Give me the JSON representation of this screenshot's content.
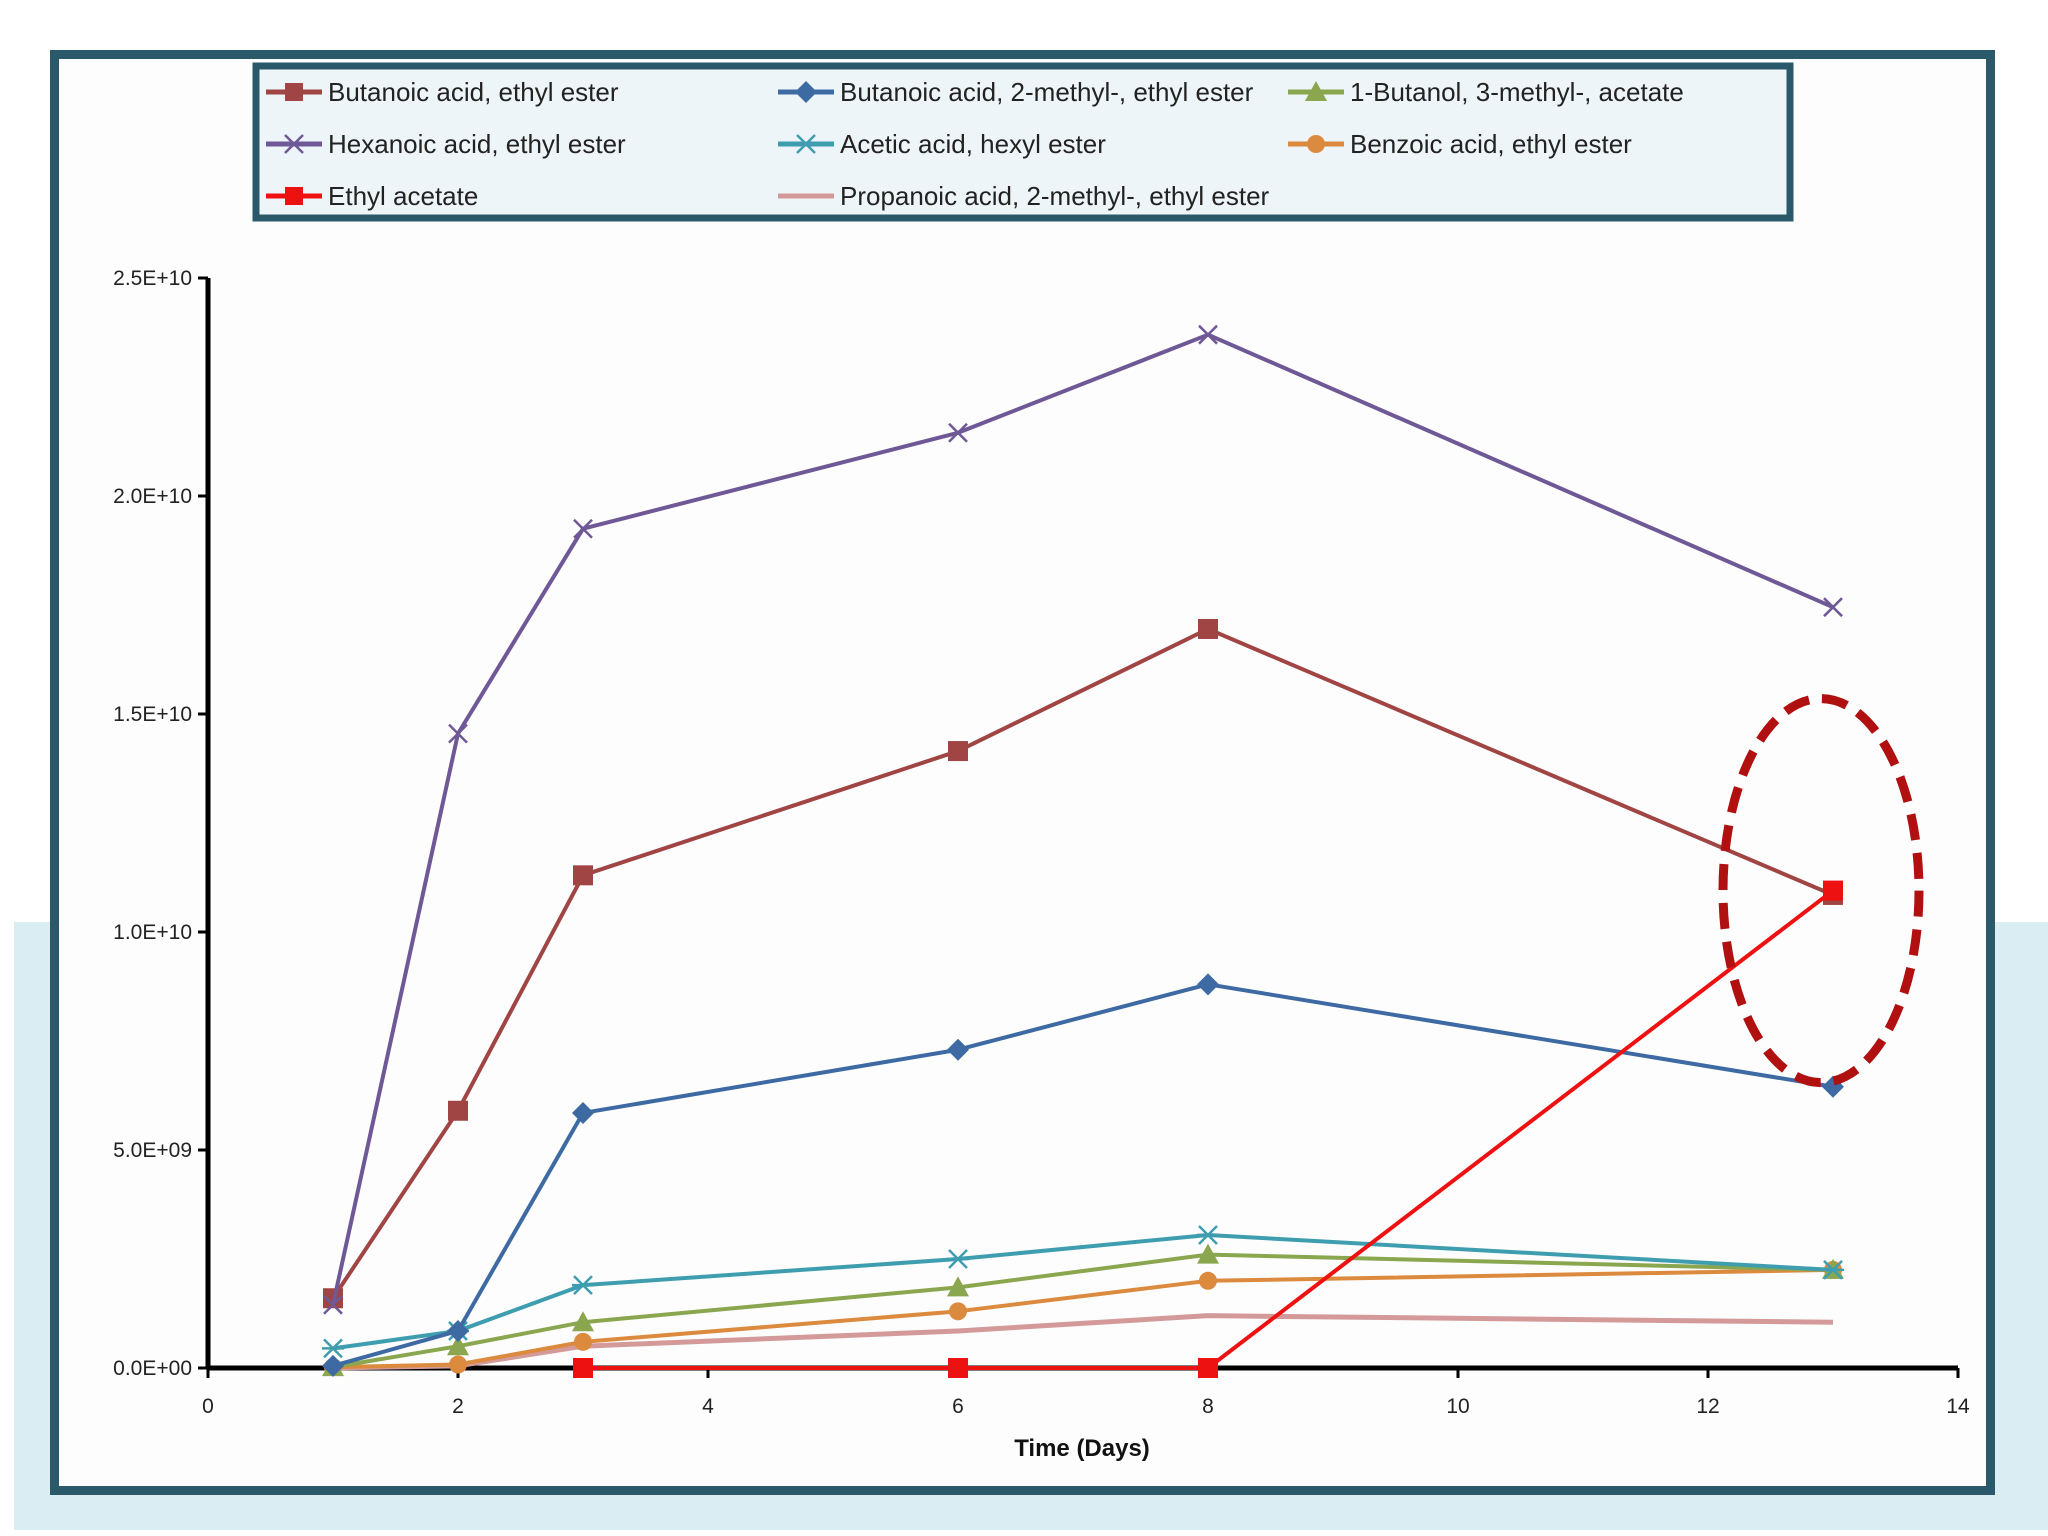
{
  "chart_data": {
    "type": "line",
    "title": "",
    "xlabel": "Time (Days)",
    "ylabel": "",
    "xlim": [
      0,
      14
    ],
    "ylim": [
      0,
      25000000000
    ],
    "x_ticks": [
      0,
      2,
      4,
      6,
      8,
      10,
      12,
      14
    ],
    "x_tick_labels": [
      "0",
      "2",
      "4",
      "6",
      "8",
      "10",
      "12",
      "14"
    ],
    "y_ticks": [
      0,
      5000000000,
      10000000000,
      15000000000,
      20000000000,
      25000000000
    ],
    "y_tick_labels": [
      "0.0E+00",
      "5.0E+09",
      "1.0E+10",
      "1.5E+10",
      "2.0E+10",
      "2.5E+10"
    ],
    "grid": false,
    "legend_position": "top",
    "series": [
      {
        "name": "Butanoic acid, ethyl ester",
        "color": "#a04444",
        "marker": "square",
        "x": [
          1,
          2,
          3,
          6,
          8,
          13
        ],
        "values": [
          1600000000,
          5900000000,
          11300000000,
          14150000000,
          16950000000,
          10850000000
        ]
      },
      {
        "name": "Butanoic acid, 2-methyl-, ethyl ester",
        "color": "#3d6aa2",
        "marker": "diamond",
        "x": [
          1,
          2,
          3,
          6,
          8,
          13
        ],
        "values": [
          50000000,
          850000000,
          5850000000,
          7300000000,
          8800000000,
          6450000000
        ]
      },
      {
        "name": "1-Butanol, 3-methyl-, acetate",
        "color": "#8aa64e",
        "marker": "triangle",
        "x": [
          1,
          2,
          3,
          6,
          8,
          13
        ],
        "values": [
          20000000,
          500000000,
          1050000000,
          1850000000,
          2600000000,
          2250000000
        ]
      },
      {
        "name": "Hexanoic acid, ethyl ester",
        "color": "#6e5896",
        "marker": "x",
        "x": [
          1,
          2,
          3,
          6,
          8,
          13
        ],
        "values": [
          1450000000,
          14550000000,
          19250000000,
          21450000000,
          23700000000,
          17450000000
        ]
      },
      {
        "name": "Acetic acid, hexyl ester",
        "color": "#3f9db0",
        "marker": "star",
        "x": [
          1,
          2,
          3,
          6,
          8,
          13
        ],
        "values": [
          450000000,
          850000000,
          1900000000,
          2500000000,
          3050000000,
          2250000000
        ]
      },
      {
        "name": "Benzoic acid, ethyl ester",
        "color": "#dc8a3e",
        "marker": "circle",
        "x": [
          1,
          2,
          3,
          6,
          8,
          13
        ],
        "values": [
          20000000,
          80000000,
          600000000,
          1300000000,
          2000000000,
          2250000000
        ]
      },
      {
        "name": "Ethyl acetate",
        "color": "#ee1111",
        "marker": "square",
        "x": [
          3,
          6,
          8,
          13
        ],
        "values": [
          0,
          0,
          0,
          10950000000
        ]
      },
      {
        "name": "Propanoic acid, 2-methyl-, ethyl ester",
        "color": "#d49a9a",
        "marker": "none",
        "x": [
          1,
          2,
          3,
          6,
          8,
          13
        ],
        "values": [
          0,
          50000000,
          500000000,
          850000000,
          1200000000,
          1050000000
        ]
      }
    ],
    "annotation": {
      "type": "dashed-ellipse",
      "color": "#b01010",
      "x": 13,
      "y": 10950000000
    }
  }
}
